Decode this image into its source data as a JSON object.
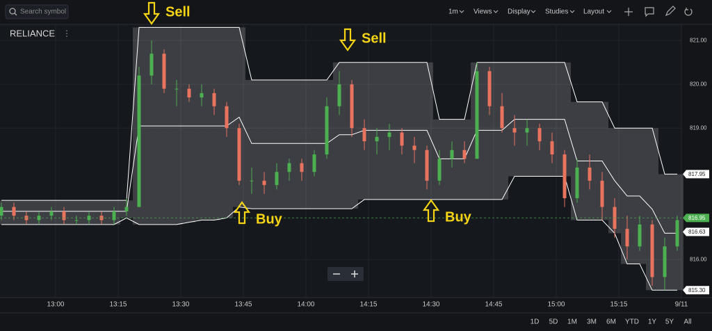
{
  "toolbar": {
    "search_placeholder": "Search symbol",
    "interval": "1m",
    "menus": [
      "Views",
      "Display",
      "Studies",
      "Layout"
    ],
    "symbol": "RELIANCE",
    "ranges": [
      "1D",
      "5D",
      "1M",
      "3M",
      "6M",
      "YTD",
      "1Y",
      "5Y",
      "All"
    ]
  },
  "chart_data": {
    "type": "candlestick",
    "x": [
      47,
      50,
      53,
      56,
      59,
      62,
      65,
      68,
      71,
      74,
      77,
      80,
      83,
      86,
      89,
      92,
      95,
      98,
      101,
      104,
      107,
      110,
      113,
      116,
      119,
      122,
      125,
      128,
      131,
      134,
      137,
      140,
      143,
      146,
      149,
      152,
      155,
      158,
      161,
      164,
      167,
      170,
      173,
      176,
      179,
      182,
      185,
      188,
      191,
      194,
      197,
      200,
      203,
      206,
      209
    ],
    "open": [
      817.0,
      817.2,
      817.0,
      816.9,
      817.0,
      817.1,
      816.9,
      816.9,
      817.0,
      816.9,
      817.1,
      817.2,
      820.2,
      820.7,
      819.9,
      819.9,
      819.7,
      819.8,
      819.5,
      819.0,
      817.8,
      817.8,
      817.7,
      818.0,
      818.2,
      818.0,
      818.4,
      819.5,
      820.0,
      819.0,
      818.7,
      818.8,
      818.9,
      818.6,
      818.5,
      817.8,
      818.3,
      818.5,
      818.3,
      820.3,
      819.5,
      819.0,
      818.9,
      819.0,
      818.7,
      818.4,
      817.4,
      818.1,
      817.8,
      817.2,
      816.7,
      816.3,
      816.8,
      815.6,
      816.3
    ],
    "high": [
      817.3,
      817.3,
      817.1,
      817.1,
      817.2,
      817.2,
      817.0,
      817.1,
      817.1,
      817.2,
      817.4,
      820.4,
      821.0,
      820.8,
      820.1,
      820.0,
      820.0,
      819.9,
      819.6,
      819.1,
      818.1,
      818.0,
      818.2,
      818.3,
      818.3,
      818.5,
      819.7,
      820.3,
      820.1,
      819.2,
      819.0,
      819.1,
      819.0,
      818.8,
      818.6,
      818.5,
      818.7,
      818.7,
      820.5,
      820.4,
      819.8,
      819.3,
      819.2,
      819.1,
      818.9,
      818.5,
      818.3,
      818.4,
      818.0,
      817.4,
      817.0,
      817.0,
      816.9,
      816.5,
      817.0
    ],
    "low": [
      816.9,
      816.9,
      816.8,
      816.8,
      816.9,
      816.8,
      816.8,
      816.8,
      816.8,
      816.8,
      817.0,
      817.2,
      820.0,
      819.8,
      819.5,
      819.6,
      819.5,
      819.3,
      818.8,
      817.7,
      817.5,
      817.5,
      817.6,
      817.8,
      817.8,
      817.9,
      818.3,
      819.3,
      818.8,
      818.5,
      818.4,
      818.5,
      818.4,
      818.2,
      817.6,
      817.7,
      818.1,
      818.2,
      818.3,
      819.3,
      818.9,
      818.6,
      818.6,
      818.5,
      818.2,
      817.2,
      817.3,
      817.6,
      816.9,
      816.5,
      816.0,
      816.2,
      815.4,
      815.3,
      816.2
    ],
    "close": [
      817.2,
      817.0,
      816.9,
      817.0,
      817.1,
      816.9,
      816.9,
      817.0,
      816.9,
      817.1,
      817.2,
      820.2,
      820.7,
      819.9,
      819.9,
      819.7,
      819.8,
      819.5,
      819.0,
      817.8,
      817.8,
      817.7,
      818.0,
      818.2,
      818.0,
      818.4,
      819.5,
      820.0,
      819.0,
      818.7,
      818.8,
      818.9,
      818.6,
      818.5,
      817.8,
      818.3,
      818.5,
      818.3,
      820.3,
      819.5,
      819.0,
      818.9,
      819.0,
      818.7,
      818.4,
      817.4,
      818.1,
      817.8,
      817.2,
      816.7,
      816.3,
      816.8,
      815.6,
      816.3,
      816.9
    ],
    "upper": [
      817.35,
      817.35,
      817.35,
      817.35,
      817.35,
      817.35,
      817.35,
      817.35,
      817.35,
      817.35,
      817.35,
      821.3,
      821.3,
      821.3,
      821.3,
      821.3,
      821.3,
      821.3,
      821.3,
      821.3,
      820.1,
      820.1,
      820.1,
      820.1,
      820.1,
      820.1,
      820.1,
      820.5,
      820.5,
      820.5,
      820.5,
      820.5,
      820.5,
      820.5,
      820.5,
      819.2,
      819.2,
      819.2,
      820.5,
      820.5,
      820.5,
      820.5,
      820.5,
      820.5,
      820.5,
      820.5,
      819.6,
      819.6,
      819.6,
      819.0,
      819.0,
      819.0,
      819.0,
      817.95,
      817.95
    ],
    "middle": [
      817.1,
      817.1,
      817.1,
      817.1,
      817.1,
      817.1,
      817.1,
      817.1,
      817.1,
      817.1,
      817.1,
      819.05,
      819.05,
      819.05,
      819.05,
      819.05,
      819.05,
      819.05,
      819.05,
      819.25,
      818.65,
      818.65,
      818.65,
      818.65,
      818.65,
      818.65,
      818.65,
      818.85,
      818.85,
      818.95,
      818.95,
      818.95,
      818.95,
      818.95,
      818.95,
      818.3,
      818.3,
      818.3,
      818.95,
      818.95,
      818.95,
      819.2,
      819.2,
      819.2,
      819.2,
      819.2,
      818.25,
      818.25,
      818.25,
      817.8,
      817.45,
      817.45,
      817.15,
      816.6,
      816.6
    ],
    "lower": [
      816.8,
      816.8,
      816.8,
      816.8,
      816.8,
      816.8,
      816.8,
      816.8,
      816.8,
      816.8,
      816.95,
      816.8,
      816.8,
      816.8,
      816.8,
      816.85,
      816.9,
      816.9,
      816.95,
      817.2,
      817.16,
      817.16,
      817.16,
      817.16,
      817.16,
      817.16,
      817.16,
      817.16,
      817.16,
      817.37,
      817.37,
      817.37,
      817.37,
      817.37,
      817.37,
      817.37,
      817.37,
      817.37,
      817.37,
      817.37,
      817.37,
      817.9,
      817.9,
      817.9,
      817.9,
      817.9,
      816.9,
      816.9,
      816.9,
      816.6,
      815.9,
      815.9,
      815.3,
      815.3,
      815.3
    ],
    "xlim": [
      46.67,
      210
    ],
    "xticks": [
      {
        "value": 60,
        "label": "13:00"
      },
      {
        "value": 75,
        "label": "13:15"
      },
      {
        "value": 90,
        "label": "13:30"
      },
      {
        "value": 105,
        "label": "13:45"
      },
      {
        "value": 120,
        "label": "14:00"
      },
      {
        "value": 135,
        "label": "14:15"
      },
      {
        "value": 150,
        "label": "14:30"
      },
      {
        "value": 165,
        "label": "14:45"
      },
      {
        "value": 180,
        "label": "15:00"
      },
      {
        "value": 195,
        "label": "15:15"
      },
      {
        "value": 210,
        "label": "9/11"
      }
    ],
    "ylim": [
      815.13,
      821.37
    ],
    "yticks": [
      {
        "value": 821,
        "label": "821.00"
      },
      {
        "value": 820,
        "label": "820.00"
      },
      {
        "value": 819,
        "label": "819.00"
      },
      {
        "value": 816,
        "label": "816.00"
      }
    ],
    "price_tags": [
      {
        "value": 817.95,
        "label": "817.95"
      },
      {
        "value": 816.95,
        "label": "816.95"
      },
      {
        "value": 816.63,
        "label": "816.63"
      },
      {
        "value": 815.3,
        "label": "815.30"
      }
    ],
    "current_price_index": 1,
    "up_color": "#4caf50",
    "down_color": "#e8735f",
    "band_color": "#ffffff",
    "grid": true,
    "annotations": [
      "Sell",
      "Sell",
      "Buy",
      "Buy"
    ]
  }
}
